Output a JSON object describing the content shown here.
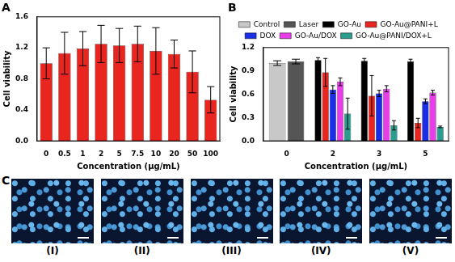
{
  "chart_data": [
    {
      "type": "bar",
      "title": "A",
      "x_label": "Concentration (μg/mL)",
      "y_label": "Cell viability",
      "categories": [
        "0",
        "0.5",
        "1",
        "2",
        "5",
        "7.5",
        "10",
        "20",
        "50",
        "100"
      ],
      "values": [
        1.0,
        1.13,
        1.19,
        1.25,
        1.23,
        1.25,
        1.16,
        1.12,
        0.89,
        0.53
      ],
      "errors": [
        0.2,
        0.27,
        0.22,
        0.24,
        0.22,
        0.23,
        0.3,
        0.18,
        0.27,
        0.17
      ],
      "color": "#e8251f",
      "ylim": [
        0,
        1.6
      ],
      "yticks": [
        {
          "value": 0,
          "label": "0.0"
        },
        {
          "value": 0.4,
          "label": "0.4"
        },
        {
          "value": 0.8,
          "label": "0.8"
        },
        {
          "value": 1.2,
          "label": "1.2"
        },
        {
          "value": 1.6,
          "label": "1.6"
        }
      ],
      "grid": false
    },
    {
      "type": "bar",
      "title": "B",
      "x_label": "Concentration (μg/mL)",
      "y_label": "Cell viability",
      "categories": [
        "0",
        "2",
        "3",
        "5"
      ],
      "series": [
        {
          "name": "Control",
          "color": "#c8c8c8",
          "values": [
            1.0,
            null,
            null,
            null
          ],
          "errors": [
            0.03,
            null,
            null,
            null
          ]
        },
        {
          "name": "Laser",
          "color": "#555555",
          "values": [
            1.02,
            null,
            null,
            null
          ],
          "errors": [
            0.03,
            null,
            null,
            null
          ]
        },
        {
          "name": "GO-Au",
          "color": "#000000",
          "values": [
            null,
            1.04,
            1.03,
            1.02
          ],
          "errors": [
            null,
            0.03,
            0.03,
            0.03
          ]
        },
        {
          "name": "GO-Au@PANI+L",
          "color": "#e8251f",
          "values": [
            null,
            0.88,
            0.58,
            0.23
          ],
          "errors": [
            null,
            0.18,
            0.26,
            0.06
          ]
        },
        {
          "name": "DOX",
          "color": "#1a2ee8",
          "values": [
            null,
            0.66,
            0.61,
            0.51
          ],
          "errors": [
            null,
            0.05,
            0.04,
            0.03
          ]
        },
        {
          "name": "GO-Au/DOX",
          "color": "#e83ee8",
          "values": [
            null,
            0.76,
            0.67,
            0.62
          ],
          "errors": [
            null,
            0.05,
            0.04,
            0.03
          ]
        },
        {
          "name": "GO-Au@PANI/DOX+L",
          "color": "#2a9d8f",
          "values": [
            null,
            0.35,
            0.2,
            0.18
          ],
          "errors": [
            null,
            0.2,
            0.06,
            0.01
          ]
        }
      ],
      "ylim": [
        0,
        1.2
      ],
      "yticks": [
        {
          "value": 0,
          "label": "0.0"
        },
        {
          "value": 0.3,
          "label": "0.3"
        },
        {
          "value": 0.6,
          "label": "0.6"
        },
        {
          "value": 0.9,
          "label": "0.9"
        },
        {
          "value": 1.2,
          "label": "1.2"
        }
      ],
      "legend": "top",
      "grid": false
    }
  ],
  "panel_c": {
    "title": "C",
    "images": [
      "(I)",
      "(II)",
      "(III)",
      "(IV)",
      "(V)"
    ]
  }
}
